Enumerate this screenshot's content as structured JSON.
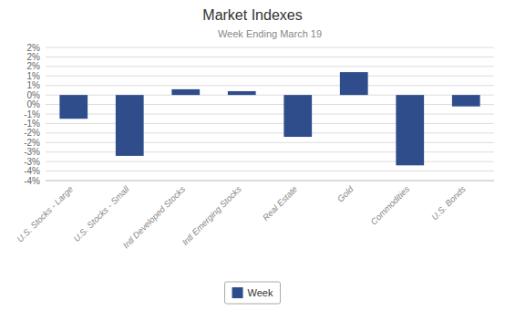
{
  "chart_data": {
    "type": "bar",
    "title": "Market Indexes",
    "subtitle": "Week Ending March 19",
    "categories": [
      "U.S. Stocks - Large",
      "U.S. Stocks - Small",
      "Intl Developed Stocks",
      "Intl Emerging Stocks",
      "Real Estate",
      "Gold",
      "Commodities",
      "U.S. Bonds"
    ],
    "series": [
      {
        "name": "Week",
        "color": "#2E4D8A",
        "values": [
          -0.0125,
          -0.032,
          0.003,
          0.002,
          -0.022,
          0.012,
          -0.037,
          -0.006
        ]
      }
    ],
    "ylim": [
      -0.045,
      0.025
    ],
    "yticks": [
      {
        "value": -0.045,
        "label": "-4%"
      },
      {
        "value": -0.04,
        "label": "-4%"
      },
      {
        "value": -0.035,
        "label": "-3%"
      },
      {
        "value": -0.03,
        "label": "-3%"
      },
      {
        "value": -0.025,
        "label": "-2%"
      },
      {
        "value": -0.02,
        "label": "-2%"
      },
      {
        "value": -0.015,
        "label": "-1%"
      },
      {
        "value": -0.01,
        "label": "-1%"
      },
      {
        "value": -0.005,
        "label": "0%"
      },
      {
        "value": 0,
        "label": "0%"
      },
      {
        "value": 0.005,
        "label": "1%"
      },
      {
        "value": 0.01,
        "label": "1%"
      },
      {
        "value": 0.015,
        "label": "2%"
      },
      {
        "value": 0.02,
        "label": "2%"
      },
      {
        "value": 0.025,
        "label": "2%"
      }
    ],
    "grid": true,
    "legend": "bottom"
  }
}
